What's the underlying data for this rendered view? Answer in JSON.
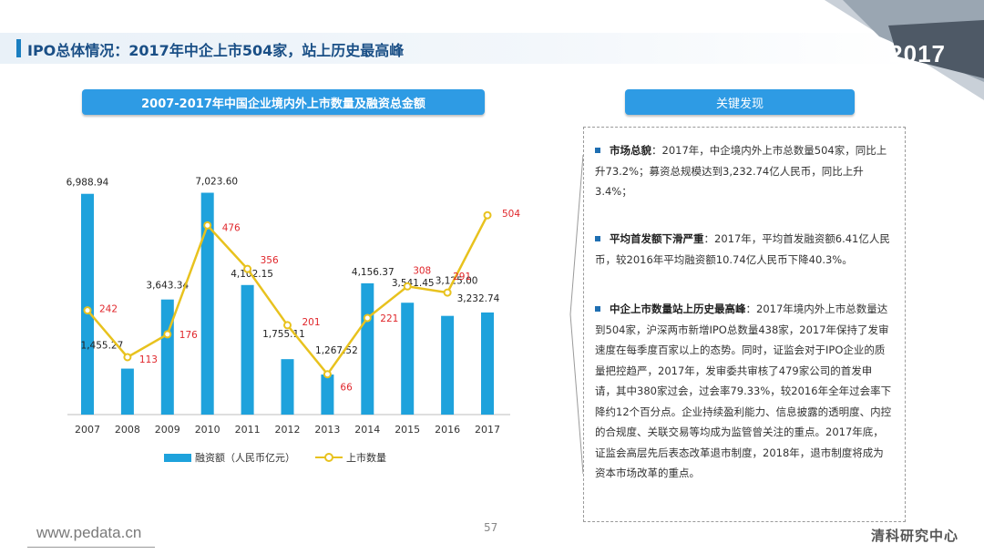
{
  "page_title": "IPO总体情况：2017年中企上市504家，站上历史最高峰",
  "year_badge": "2017",
  "chart_pill": "2007-2017年中国企业境内外上市数量及融资总金额",
  "findings_pill": "关键发现",
  "findings": [
    {
      "head": "市场总貌",
      "text": "：2017年，中企境内外上市总数量504家，同比上升73.2%；募资总规模达到3,232.74亿人民币，同比上升3.4%；"
    },
    {
      "head": "平均首发额下滑严重",
      "text": "：2017年，平均首发融资额6.41亿人民币，较2016年平均融资额10.74亿人民币下降40.3%。"
    },
    {
      "head": "中企上市数量站上历史最高峰",
      "text": "：2017年境内外上市总数量达到504家，沪深两市新增IPO总数量438家，2017年保持了发审速度在每季度百家以上的态势。同时，证监会对于IPO企业的质量把控趋严，2017年，发审委共审核了479家公司的首发申请，其中380家过会，过会率79.33%，较2016年全年过会率下降约12个百分点。企业持续盈利能力、信息披露的透明度、内控的合规度、关联交易等均成为监管曾关注的重点。2017年底，证监会高层先后表态改革退市制度，2018年，退市制度将成为资本市场改革的重点。"
    }
  ],
  "footer_url": "www.pedata.cn",
  "page_number": "57",
  "brand": "清科研究中心",
  "chart_data": {
    "type": "bar",
    "title": "2007-2017年中国企业境内外上市数量及融资总金额",
    "categories": [
      "2007",
      "2008",
      "2009",
      "2010",
      "2011",
      "2012",
      "2013",
      "2014",
      "2015",
      "2016",
      "2017"
    ],
    "series": [
      {
        "name": "融资额（人民币亿元）",
        "type": "bar",
        "color": "#1ea2dc",
        "values": [
          6988.94,
          1455.27,
          3643.34,
          7023.6,
          4102.15,
          1755.11,
          1267.52,
          4156.37,
          3541.45,
          3125.0,
          3232.74
        ],
        "labels": [
          "6,988.94",
          "1,455.27",
          "3,643.34",
          "7,023.60",
          "4,102.15",
          "1,755.11",
          "1,267.52",
          "4,156.37",
          "3,541.45",
          "3,125.00",
          "3,232.74"
        ]
      },
      {
        "name": "上市数量",
        "type": "line",
        "color": "#e8c21e",
        "label_color": "#e0262b",
        "values": [
          242,
          113,
          176,
          476,
          356,
          201,
          66,
          221,
          308,
          291,
          504
        ]
      }
    ],
    "ylim_bar": [
      0,
      7500
    ],
    "ylim_line": [
      0,
      620
    ],
    "grid": false,
    "legend": "bottom"
  }
}
